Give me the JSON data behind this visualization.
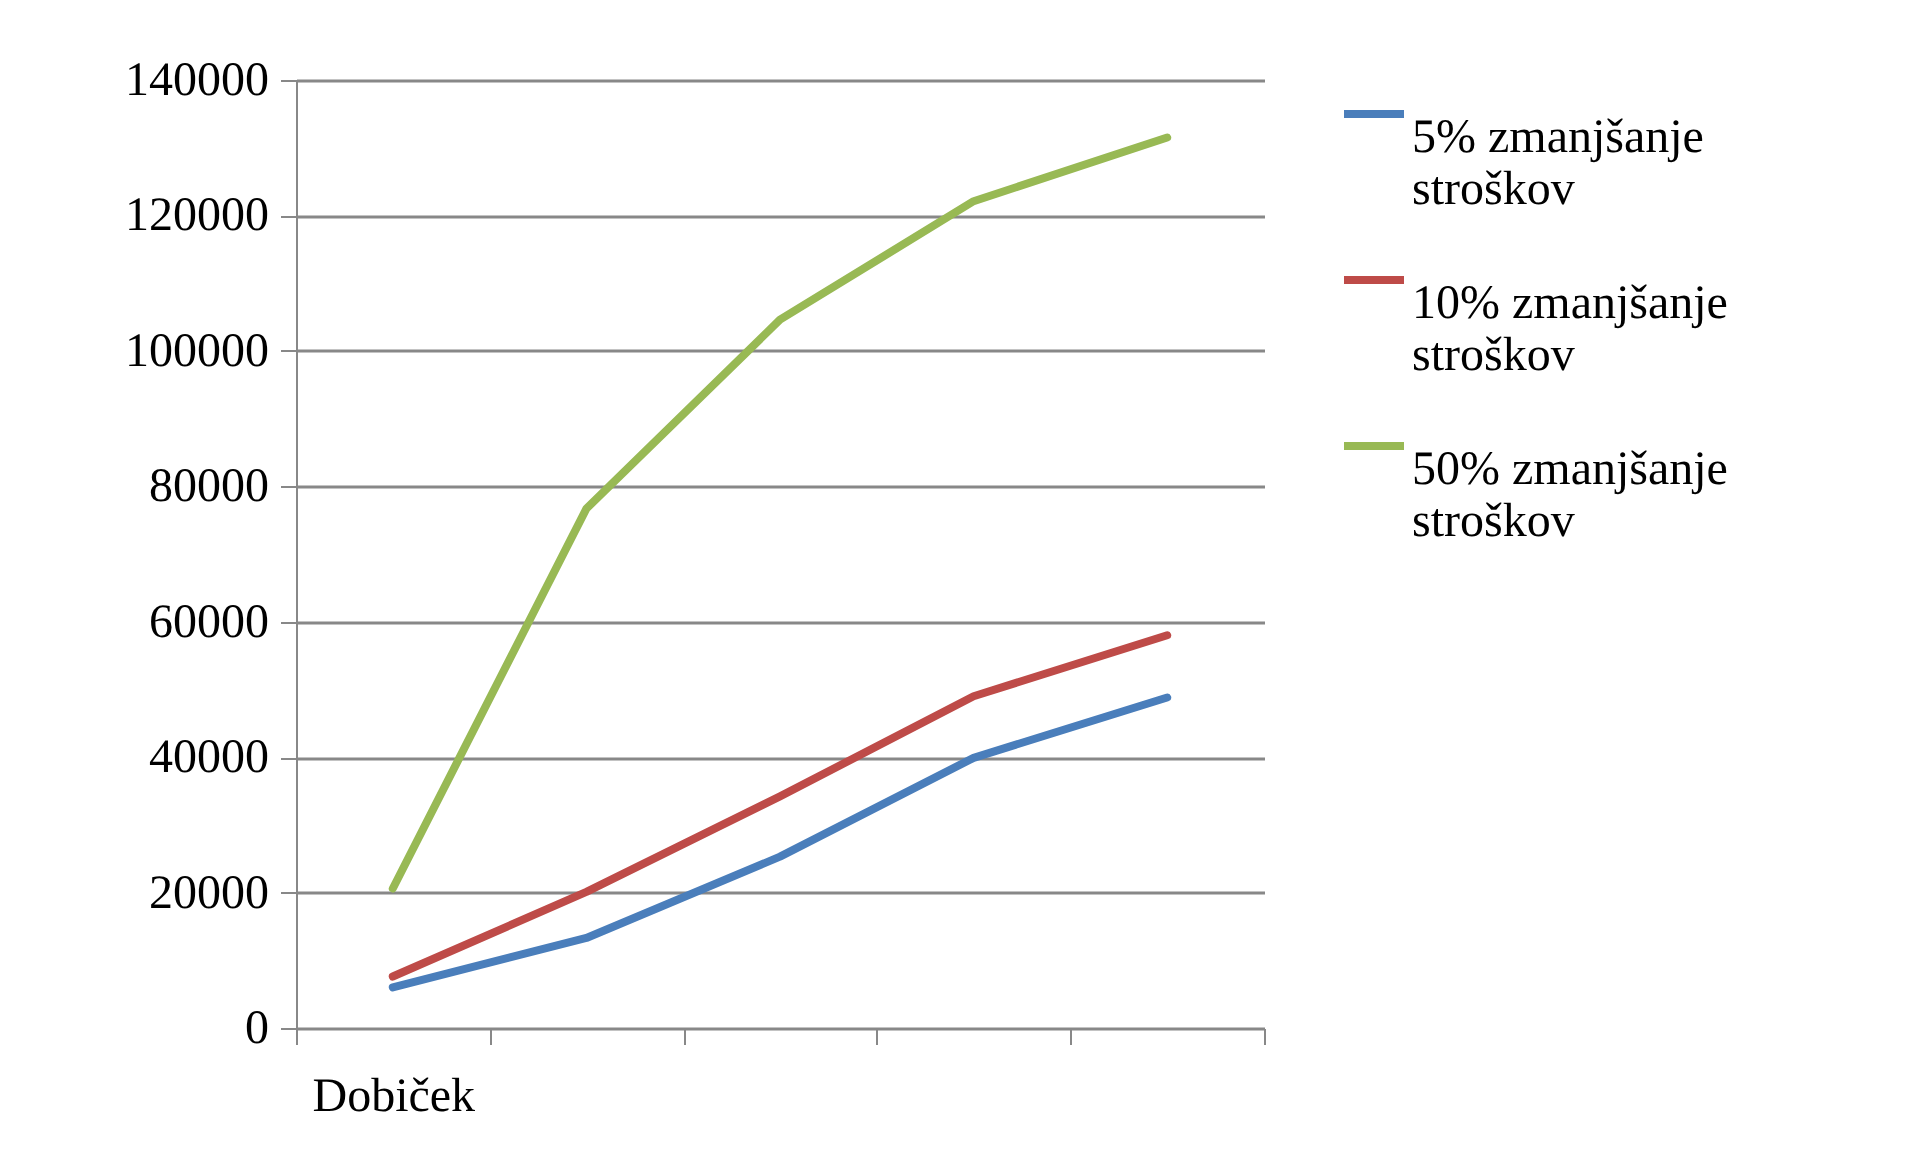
{
  "chart_data": {
    "type": "line",
    "categories": [
      "Dobiček",
      null,
      null,
      null,
      null
    ],
    "series": [
      {
        "name": "5% zmanjšanje stroškov",
        "color": "#4a7ebb",
        "values": [
          6000,
          13300,
          25300,
          39900,
          48800
        ]
      },
      {
        "name": "10% zmanjšanje stroškov",
        "color": "#be4b48",
        "values": [
          7600,
          20100,
          34200,
          49000,
          58000
        ]
      },
      {
        "name": "50% zmanjšanje stroškov",
        "color": "#98b954",
        "values": [
          20600,
          76700,
          104600,
          122100,
          131500
        ]
      }
    ],
    "ylim": [
      0,
      140000
    ],
    "yticks": [
      0,
      20000,
      40000,
      60000,
      80000,
      100000,
      120000,
      140000
    ],
    "grid": "y",
    "legend": "right",
    "marker": "none",
    "line_style": "solid"
  }
}
